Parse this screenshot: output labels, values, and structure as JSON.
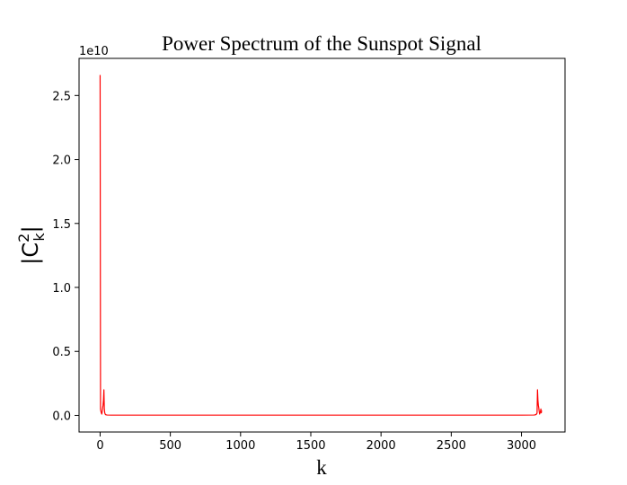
{
  "chart_data": {
    "type": "line",
    "title": "Power Spectrum of the Sunspot Signal",
    "xlabel": "k",
    "ylabel": {
      "base": "|C",
      "superscript": "2",
      "subscript": "k",
      "close": "|"
    },
    "y_offset_text": "1e10",
    "xlim": [
      -150,
      3310
    ],
    "ylim": [
      -0.13,
      2.79
    ],
    "xticks": [
      0,
      500,
      1000,
      1500,
      2000,
      2500,
      3000
    ],
    "xtick_labels": [
      "0",
      "500",
      "1000",
      "1500",
      "2000",
      "2500",
      "3000"
    ],
    "yticks": [
      0.0,
      0.5,
      1.0,
      1.5,
      2.0,
      2.5
    ],
    "ytick_labels": [
      "0.0",
      "0.5",
      "1.0",
      "1.5",
      "2.0",
      "2.5"
    ],
    "grid": false,
    "series": [
      {
        "color": "#ff0000",
        "x": [
          0,
          3,
          6,
          9,
          12,
          15,
          18,
          21,
          24,
          27,
          30,
          33,
          36,
          40,
          50,
          80,
          150,
          300,
          1000,
          2000,
          3000,
          3090,
          3100,
          3105,
          3108,
          3111,
          3114,
          3117,
          3120,
          3123,
          3126,
          3129,
          3132,
          3135,
          3138,
          3141,
          3143
        ],
        "y": [
          2.66,
          0.05,
          0.03,
          0.02,
          0.01,
          0.03,
          0.06,
          0.08,
          0.12,
          0.2,
          0.05,
          0.02,
          0.01,
          0.005,
          0.003,
          0.002,
          0.002,
          0.002,
          0.002,
          0.002,
          0.002,
          0.003,
          0.005,
          0.01,
          0.01,
          0.02,
          0.2,
          0.12,
          0.08,
          0.06,
          0.03,
          0.01,
          0.02,
          0.03,
          0.05,
          0.02,
          0.04
        ]
      }
    ]
  }
}
